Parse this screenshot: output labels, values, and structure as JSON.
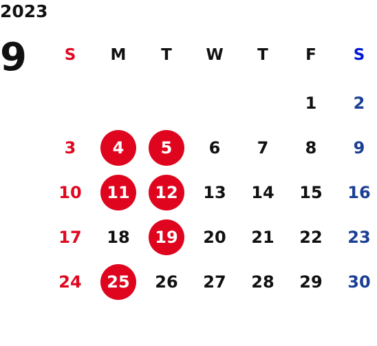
{
  "year": "2023",
  "month": "9",
  "weekdays": [
    "S",
    "M",
    "T",
    "W",
    "T",
    "F",
    "S"
  ],
  "weeks": [
    [
      "",
      "",
      "",
      "",
      "",
      "1",
      "2"
    ],
    [
      "3",
      "4",
      "5",
      "6",
      "7",
      "8",
      "9"
    ],
    [
      "10",
      "11",
      "12",
      "13",
      "14",
      "15",
      "16"
    ],
    [
      "17",
      "18",
      "19",
      "20",
      "21",
      "22",
      "23"
    ],
    [
      "24",
      "25",
      "26",
      "27",
      "28",
      "29",
      "30"
    ]
  ],
  "highlighted_days": [
    "4",
    "5",
    "11",
    "12",
    "19",
    "25"
  ],
  "colors": {
    "sunday": "#e0081f",
    "saturday_header": "#0018d8",
    "saturday": "#1b3f94",
    "weekday": "#111111",
    "highlight": "#e0051e"
  }
}
